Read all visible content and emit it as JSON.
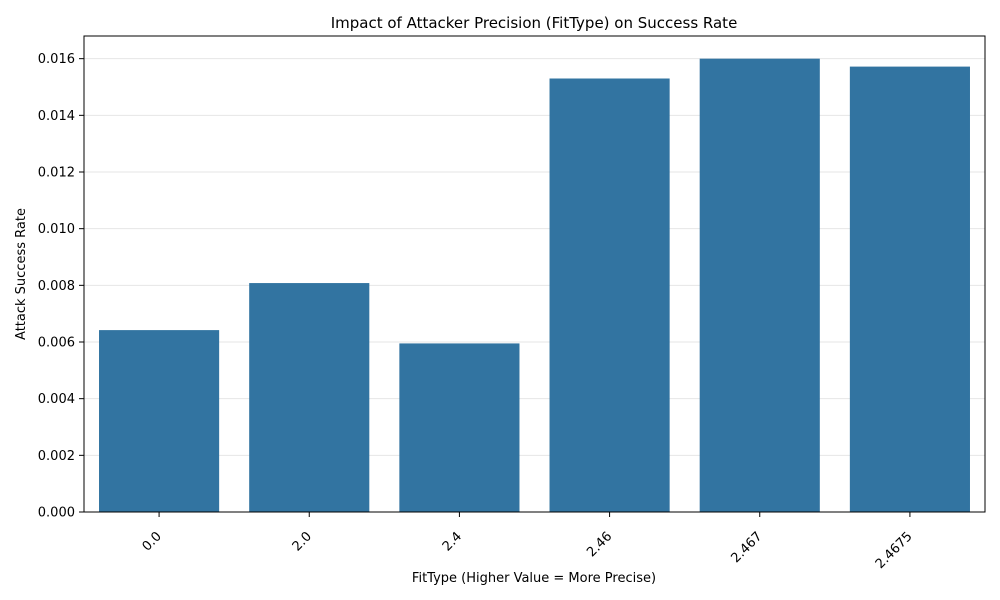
{
  "chart_data": {
    "type": "bar",
    "title": "Impact of Attacker Precision (FitType) on Success Rate",
    "xlabel": "FitType (Higher Value = More Precise)",
    "ylabel": "Attack Success Rate",
    "categories": [
      "0.0",
      "2.0",
      "2.4",
      "2.46",
      "2.467",
      "2.4675"
    ],
    "values": [
      0.00642,
      0.00808,
      0.00595,
      0.0153,
      0.016,
      0.01572
    ],
    "ylim": [
      0,
      0.0168
    ],
    "yticks": [
      0.0,
      0.002,
      0.004,
      0.006,
      0.008,
      0.01,
      0.012,
      0.014,
      0.016
    ],
    "ytick_labels": [
      "0.000",
      "0.002",
      "0.004",
      "0.006",
      "0.008",
      "0.010",
      "0.012",
      "0.014",
      "0.016"
    ],
    "grid": true,
    "bar_color": "#3274a1",
    "grid_color": "#e6e6e6"
  }
}
